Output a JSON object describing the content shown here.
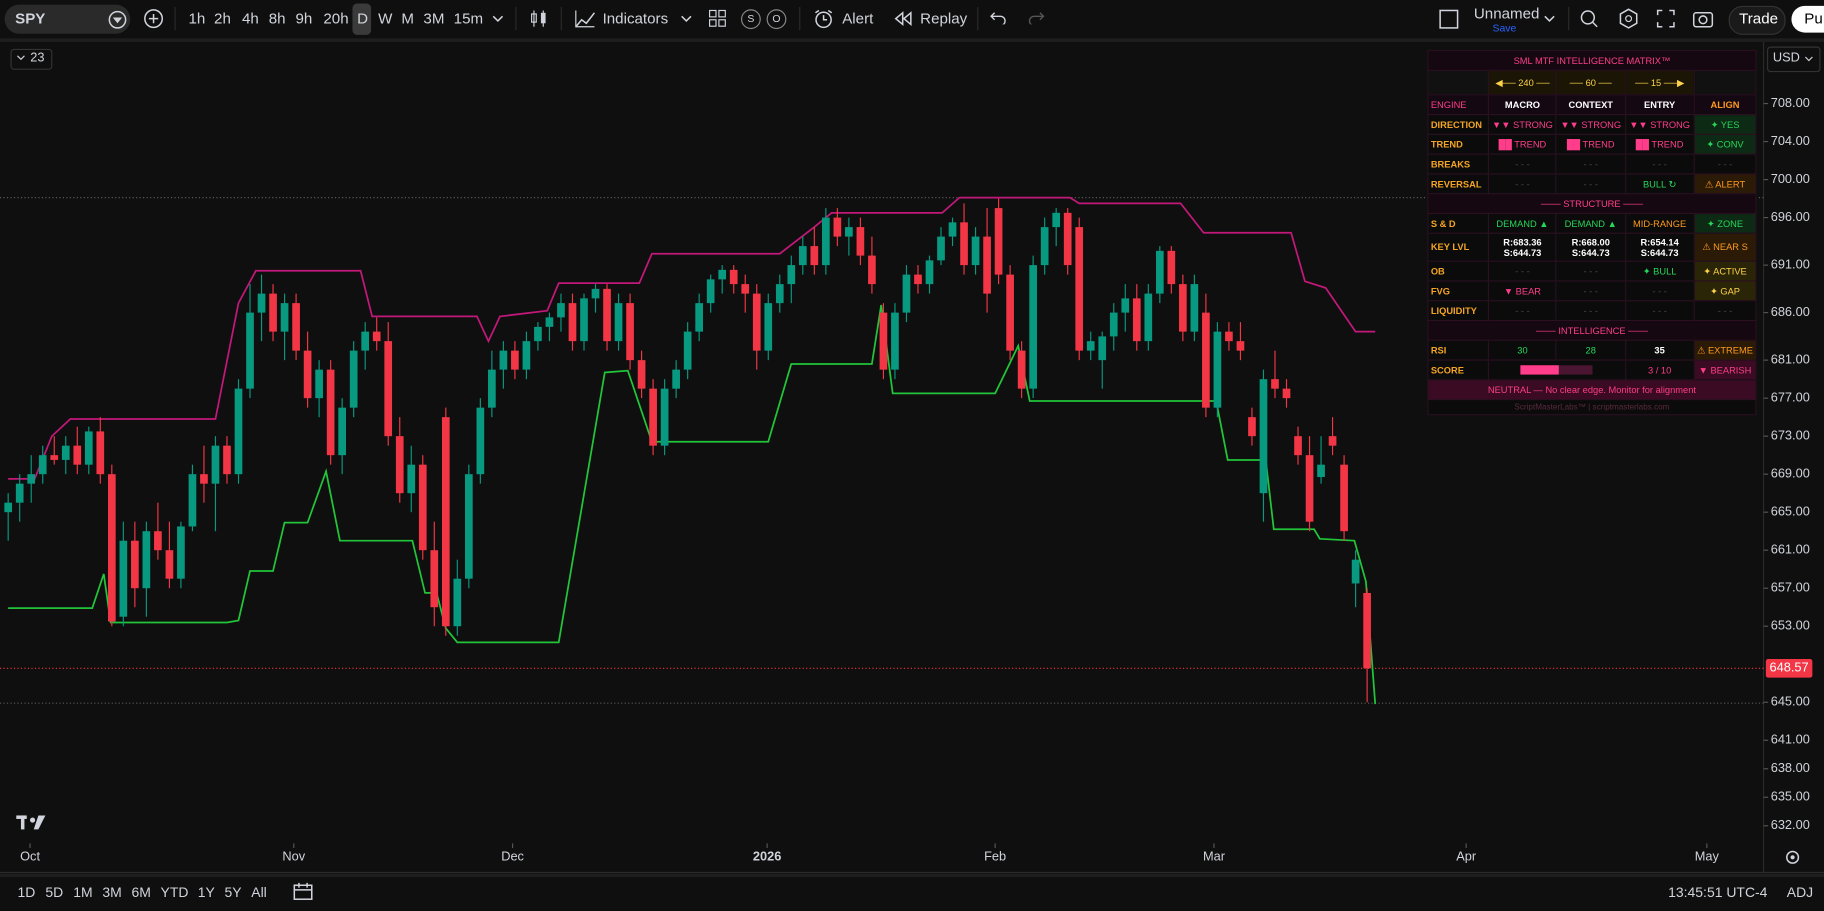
{
  "toolbar": {
    "symbol": "SPY",
    "intervals": [
      "1h",
      "2h",
      "4h",
      "8h",
      "9h",
      "20h",
      "D",
      "W",
      "M",
      "3M",
      "15m"
    ],
    "indicators": "Indicators",
    "badges": [
      "S",
      "O"
    ],
    "alert": "Alert",
    "replay": "Replay",
    "layout_name": "Unnamed",
    "save": "Save",
    "trade": "Trade",
    "publish": "Pu"
  },
  "legend_count": "23",
  "currency": "USD",
  "chart_data": {
    "type": "candlestick",
    "up_color": "#089981",
    "down_color": "#f23645",
    "upper_band_color": "#c2187a",
    "lower_band_color": "#22c53a",
    "ylim": [
      630.15,
      714.49
    ],
    "xlim": [
      -0.71,
      152.42
    ],
    "yticks": [
      {
        "value": 708,
        "label": "708.00"
      },
      {
        "value": 704,
        "label": "704.00"
      },
      {
        "value": 700,
        "label": "700.00"
      },
      {
        "value": 696,
        "label": "696.00"
      },
      {
        "value": 691,
        "label": "691.00"
      },
      {
        "value": 686,
        "label": "686.00"
      },
      {
        "value": 681,
        "label": "681.00"
      },
      {
        "value": 677,
        "label": "677.00"
      },
      {
        "value": 673,
        "label": "673.00"
      },
      {
        "value": 669,
        "label": "669.00"
      },
      {
        "value": 665,
        "label": "665.00"
      },
      {
        "value": 661,
        "label": "661.00"
      },
      {
        "value": 657,
        "label": "657.00"
      },
      {
        "value": 653,
        "label": "653.00"
      },
      {
        "value": 645,
        "label": "645.00"
      },
      {
        "value": 641,
        "label": "641.00"
      },
      {
        "value": 638,
        "label": "638.00"
      },
      {
        "value": 635,
        "label": "635.00"
      },
      {
        "value": 632,
        "label": "632.00"
      }
    ],
    "xticks": [
      {
        "value": 1.9,
        "label": "Oct"
      },
      {
        "value": 24.8,
        "label": "Nov"
      },
      {
        "value": 43.8,
        "label": "Dec"
      },
      {
        "value": 65.9,
        "label": "2026"
      },
      {
        "value": 85.7,
        "label": "Feb"
      },
      {
        "value": 104.7,
        "label": "Mar"
      },
      {
        "value": 126.6,
        "label": "Apr"
      },
      {
        "value": 147.5,
        "label": "May"
      }
    ],
    "last_price": 648.57,
    "high_line": 698.1,
    "low_line": 644.9,
    "candles": [
      [
        665,
        667,
        662,
        666
      ],
      [
        666,
        669,
        664,
        668
      ],
      [
        668,
        671,
        666,
        669
      ],
      [
        669,
        672,
        668,
        671
      ],
      [
        671,
        673,
        670,
        670.5
      ],
      [
        670.5,
        673,
        669,
        672
      ],
      [
        672,
        674,
        669,
        670
      ],
      [
        670,
        674,
        669,
        673.5
      ],
      [
        673.5,
        675,
        668,
        669
      ],
      [
        669,
        670,
        653,
        653.5
      ],
      [
        654,
        664,
        653,
        662
      ],
      [
        662,
        664,
        655,
        657
      ],
      [
        657,
        664,
        654,
        663
      ],
      [
        663,
        666,
        660,
        661
      ],
      [
        661,
        664,
        657,
        658
      ],
      [
        658,
        664,
        657,
        663.5
      ],
      [
        663.5,
        670,
        663,
        669
      ],
      [
        669,
        672,
        666,
        668
      ],
      [
        668,
        673,
        663,
        672
      ],
      [
        672,
        673,
        668,
        669
      ],
      [
        669,
        679,
        668,
        678
      ],
      [
        678,
        689,
        677,
        686
      ],
      [
        686,
        690,
        683,
        688
      ],
      [
        688,
        689,
        683,
        684
      ],
      [
        684,
        688,
        681,
        687
      ],
      [
        687,
        688,
        681,
        682
      ],
      [
        682,
        684,
        676,
        677
      ],
      [
        677,
        681,
        675,
        680
      ],
      [
        680,
        681,
        670,
        671
      ],
      [
        671,
        677,
        669,
        676
      ],
      [
        676,
        683,
        675,
        682
      ],
      [
        682,
        685,
        680,
        684
      ],
      [
        684,
        685.5,
        682,
        683
      ],
      [
        683,
        685,
        672,
        673
      ],
      [
        673,
        675,
        666,
        667
      ],
      [
        667,
        672,
        665,
        670
      ],
      [
        670,
        671,
        660,
        661
      ],
      [
        661,
        664,
        653,
        655
      ],
      [
        675,
        676,
        652,
        653
      ],
      [
        653,
        660,
        652,
        658
      ],
      [
        658,
        670,
        657,
        669
      ],
      [
        669,
        677,
        668,
        676
      ],
      [
        676,
        682,
        675,
        680
      ],
      [
        680,
        683,
        678,
        682
      ],
      [
        682,
        683,
        679,
        680
      ],
      [
        680,
        684,
        679,
        683
      ],
      [
        683,
        685,
        682,
        684.5
      ],
      [
        684.5,
        686,
        683,
        685.5
      ],
      [
        685.5,
        688,
        684,
        687
      ],
      [
        687,
        688,
        682,
        683
      ],
      [
        683,
        688,
        682,
        687.5
      ],
      [
        687.5,
        689,
        686,
        688.5
      ],
      [
        688.5,
        689,
        682,
        683
      ],
      [
        683,
        688,
        682,
        687
      ],
      [
        687,
        688,
        680,
        681
      ],
      [
        681,
        682,
        677,
        678
      ],
      [
        678,
        679,
        671,
        672
      ],
      [
        672,
        679,
        671,
        678
      ],
      [
        678,
        681,
        677,
        680
      ],
      [
        680,
        685,
        679,
        684
      ],
      [
        684,
        688,
        683,
        687
      ],
      [
        687,
        690,
        686,
        689.5
      ],
      [
        689.5,
        691,
        688,
        690.5
      ],
      [
        690.5,
        691,
        688,
        689
      ],
      [
        689,
        690,
        686,
        688
      ],
      [
        688,
        689,
        680,
        682
      ],
      [
        682,
        688,
        681,
        687
      ],
      [
        687,
        690,
        686,
        689
      ],
      [
        689,
        692,
        687,
        691
      ],
      [
        691,
        694,
        690,
        693
      ],
      [
        693,
        695,
        690,
        691
      ],
      [
        691,
        697,
        690,
        696
      ],
      [
        696,
        697,
        693,
        694
      ],
      [
        694,
        696,
        692,
        695
      ],
      [
        695,
        696,
        691,
        692
      ],
      [
        692,
        694,
        688,
        689
      ],
      [
        686,
        687,
        679,
        680
      ],
      [
        680,
        687,
        679,
        686
      ],
      [
        686,
        691,
        685,
        690
      ],
      [
        690,
        691,
        688,
        689
      ],
      [
        689,
        692,
        688,
        691.5
      ],
      [
        691.5,
        695,
        691,
        694
      ],
      [
        694,
        696,
        693,
        695.5
      ],
      [
        695.5,
        697.5,
        690,
        691
      ],
      [
        691,
        695,
        690,
        694
      ],
      [
        694,
        697,
        686,
        688
      ],
      [
        697,
        698,
        689,
        690
      ],
      [
        690,
        691,
        681,
        682
      ],
      [
        682,
        683,
        677,
        678
      ],
      [
        678,
        692,
        677,
        691
      ],
      [
        691,
        696,
        690,
        695
      ],
      [
        695,
        697,
        693,
        696.5
      ],
      [
        696.5,
        697,
        690,
        691
      ],
      [
        695,
        696,
        681,
        682
      ],
      [
        682,
        684,
        681,
        683
      ],
      [
        681,
        684,
        678,
        683.5
      ],
      [
        683.5,
        687,
        682,
        686
      ],
      [
        686,
        689,
        684,
        687.5
      ],
      [
        687.5,
        689,
        682,
        683
      ],
      [
        683,
        689,
        682,
        688
      ],
      [
        688,
        693,
        687,
        692.5
      ],
      [
        692.5,
        693,
        688,
        689
      ],
      [
        689,
        690,
        683,
        684
      ],
      [
        684,
        690,
        683,
        689
      ],
      [
        686,
        688,
        675,
        676
      ],
      [
        676,
        685,
        675,
        684
      ],
      [
        684,
        685,
        682,
        683
      ],
      [
        683,
        685,
        681,
        682
      ],
      [
        675,
        676,
        672,
        673
      ],
      [
        667,
        680,
        664,
        679
      ],
      [
        679,
        682,
        677,
        678
      ],
      [
        678,
        679,
        676,
        677
      ],
      [
        673,
        674,
        670,
        671
      ],
      [
        671,
        673,
        663,
        664
      ],
      [
        668.7,
        673,
        668,
        670
      ],
      [
        673,
        675,
        671,
        672
      ],
      [
        670,
        671,
        662,
        663
      ],
      [
        657.5,
        661,
        655,
        660
      ],
      [
        656.5,
        657,
        645,
        648.57
      ]
    ],
    "upper_band": {
      "x": [
        0,
        2.3,
        3.8,
        5.4,
        18,
        20,
        21.5,
        30.6,
        31.6,
        40.7,
        41.7,
        42.7,
        46.8,
        47.8,
        54.8,
        55.9,
        67,
        70,
        71.5,
        81.1,
        82.6,
        92.2,
        93,
        101.8,
        103.8,
        111.4,
        112.6,
        114.4,
        117,
        118.7
      ],
      "values": [
        668.5,
        668.5,
        673,
        674.8,
        674.8,
        687,
        690.4,
        690.4,
        685.6,
        685.6,
        683,
        685.6,
        686.2,
        689.1,
        689.1,
        692.2,
        692.2,
        695,
        696.5,
        696.5,
        698.1,
        698.1,
        697.5,
        697.5,
        694.4,
        694.4,
        689.3,
        688.6,
        684,
        684
      ]
    },
    "lower_band": {
      "x": [
        0,
        7.3,
        8.3,
        8.9,
        19,
        20,
        21,
        23,
        24,
        26,
        27.6,
        28.8,
        35.1,
        36.2,
        37.2,
        38,
        39,
        47.8,
        51.8,
        53.8,
        55.9,
        66,
        68,
        75,
        75.8,
        76.8,
        85.7,
        87.7,
        88.7,
        104.9,
        105.9,
        109.2,
        109.9,
        113.4,
        113.9,
        116.9,
        117.9,
        118.7
      ],
      "values": [
        654.9,
        654.9,
        658.5,
        653.4,
        653.4,
        653.6,
        658.8,
        658.8,
        663.9,
        663.9,
        669.3,
        662,
        662,
        656.5,
        656.5,
        652.8,
        651.3,
        651.3,
        679.7,
        679.9,
        672.4,
        672.4,
        680.6,
        680.6,
        686.8,
        677.5,
        677.5,
        682.5,
        676.7,
        676.7,
        670.5,
        670.5,
        663.2,
        663.2,
        662.2,
        662,
        657.7,
        644.8
      ]
    }
  },
  "matrix": {
    "title": "SML MTF INTELLIGENCE MATRIX™",
    "timeframes": [
      "◀── 240 ──",
      "── 60 ──",
      "── 15 ──▶"
    ],
    "header": [
      "ENGINE",
      "MACRO",
      "CONTEXT",
      "ENTRY",
      "ALIGN"
    ],
    "rows": [
      [
        "DIRECTION",
        "▼▼ STRONG",
        "▼▼ STRONG",
        "▼▼ STRONG",
        "✦ YES"
      ],
      [
        "TREND",
        "██ TREND",
        "██ TREND",
        "██ TREND",
        "✦ CONV"
      ],
      [
        "BREAKS",
        "- - -",
        "- - -",
        "- - -",
        "- - -"
      ],
      [
        "REVERSAL",
        "- - -",
        "- - -",
        "BULL ↻",
        "⚠ ALERT"
      ]
    ],
    "structure": "─── STRUCTURE ───",
    "sd": [
      "S & D",
      "DEMAND ▲",
      "DEMAND ▲",
      "MID-RANGE",
      "✦ ZONE"
    ],
    "key_levels": {
      "label": "KEY LVL",
      "cells": [
        [
          "R:683.36",
          "S:644.73"
        ],
        [
          "R:668.00",
          "S:644.73"
        ],
        [
          "R:654.14",
          "S:644.73"
        ]
      ],
      "align": "⚠ NEAR S"
    },
    "rows2": [
      [
        "OB",
        "- - -",
        "- - -",
        "✦ BULL",
        "✦ ACTIVE"
      ],
      [
        "FVG",
        "▼ BEAR",
        "- - -",
        "- - -",
        "✦ GAP"
      ],
      [
        "LIQUIDITY",
        "- - -",
        "- - -",
        "- - -",
        "- - -"
      ]
    ],
    "intelligence": "─── INTELLIGENCE ───",
    "rsi": [
      "RSI",
      "30",
      "28",
      "35",
      "⚠ EXTREME"
    ],
    "score": {
      "label": "SCORE",
      "value": "3 / 10",
      "align": "▼ BEARISH"
    },
    "verdict": "NEUTRAL — No clear edge. Monitor for alignment",
    "footer": "ScriptMasterLabs™ | scriptmasterlabs.com"
  },
  "bottom_bar": {
    "ranges": [
      "1D",
      "5D",
      "1M",
      "3M",
      "6M",
      "YTD",
      "1Y",
      "5Y",
      "All"
    ],
    "clock": "13:45:51 UTC-4",
    "adj": "ADJ"
  }
}
